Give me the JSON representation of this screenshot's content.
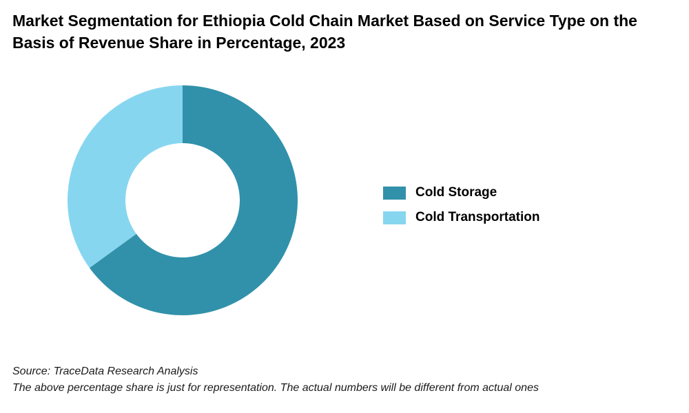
{
  "chart_data": {
    "type": "pie",
    "title": "Market Segmentation for Ethiopia Cold Chain Market Based on Service Type on the Basis of Revenue Share in Percentage, 2023",
    "categories": [
      "Cold Storage",
      "Cold Transportation"
    ],
    "values": [
      65,
      35
    ],
    "colors": [
      "#3191AA",
      "#87D6F0"
    ],
    "donut": true,
    "legend_position": "right",
    "start_angle": "12 o'clock",
    "direction": "clockwise"
  },
  "footer": {
    "source": "Source: TraceData Research Analysis",
    "note": "The above percentage share is just for representation. The actual numbers will be different from actual ones"
  }
}
